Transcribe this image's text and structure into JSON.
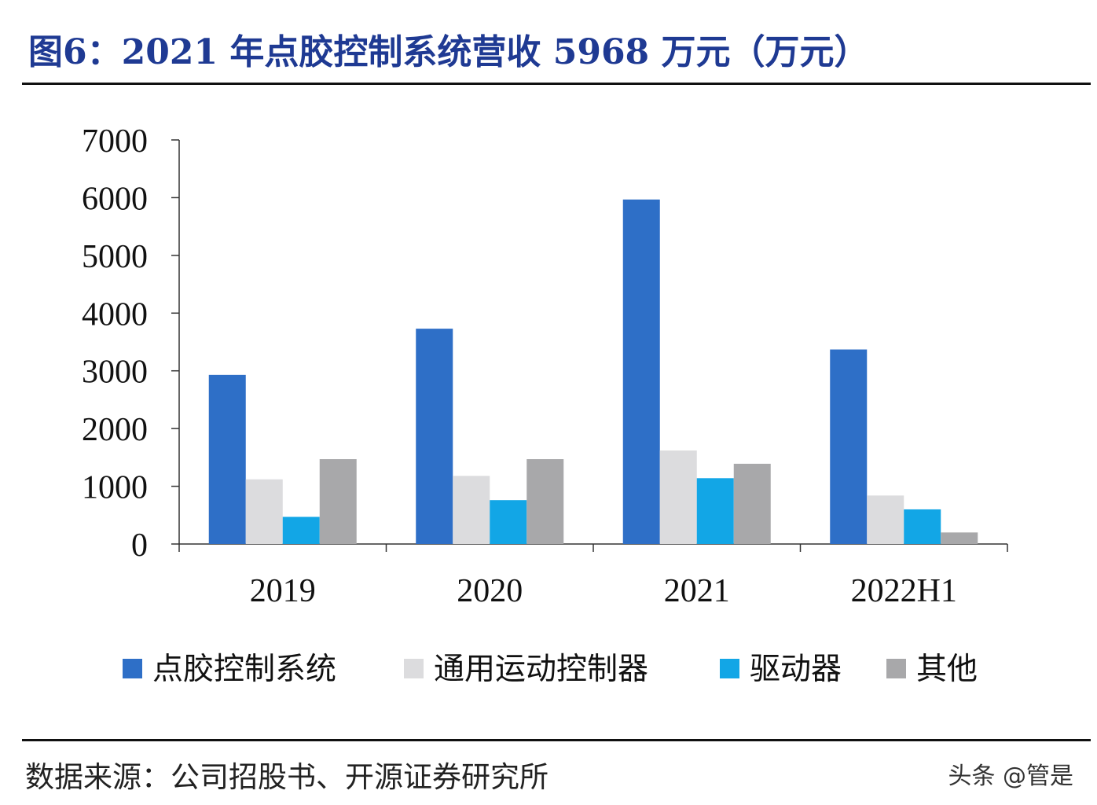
{
  "title": "图6：2021 年点胶控制系统营收 5968 万元（万元）",
  "source": "数据来源：公司招股书、开源证券研究所",
  "watermark": "头条 @管是",
  "chart_data": {
    "type": "bar",
    "title": "图6：2021 年点胶控制系统营收 5968 万元（万元）",
    "xlabel": "",
    "ylabel": "",
    "categories": [
      "2019",
      "2020",
      "2021",
      "2022H1"
    ],
    "ylim": [
      0,
      7000
    ],
    "yticks": [
      0,
      1000,
      2000,
      3000,
      4000,
      5000,
      6000,
      7000
    ],
    "grid": false,
    "legend_position": "bottom",
    "series": [
      {
        "name": "点胶控制系统",
        "color": "#2e6fc7",
        "values": [
          2930,
          3730,
          5968,
          3370
        ]
      },
      {
        "name": "通用运动控制器",
        "color": "#dcdcde",
        "values": [
          1120,
          1180,
          1620,
          840
        ]
      },
      {
        "name": "驱动器",
        "color": "#12a6e6",
        "values": [
          470,
          760,
          1140,
          600
        ]
      },
      {
        "name": "其他",
        "color": "#a8a8aa",
        "values": [
          1470,
          1470,
          1390,
          200
        ]
      }
    ]
  }
}
